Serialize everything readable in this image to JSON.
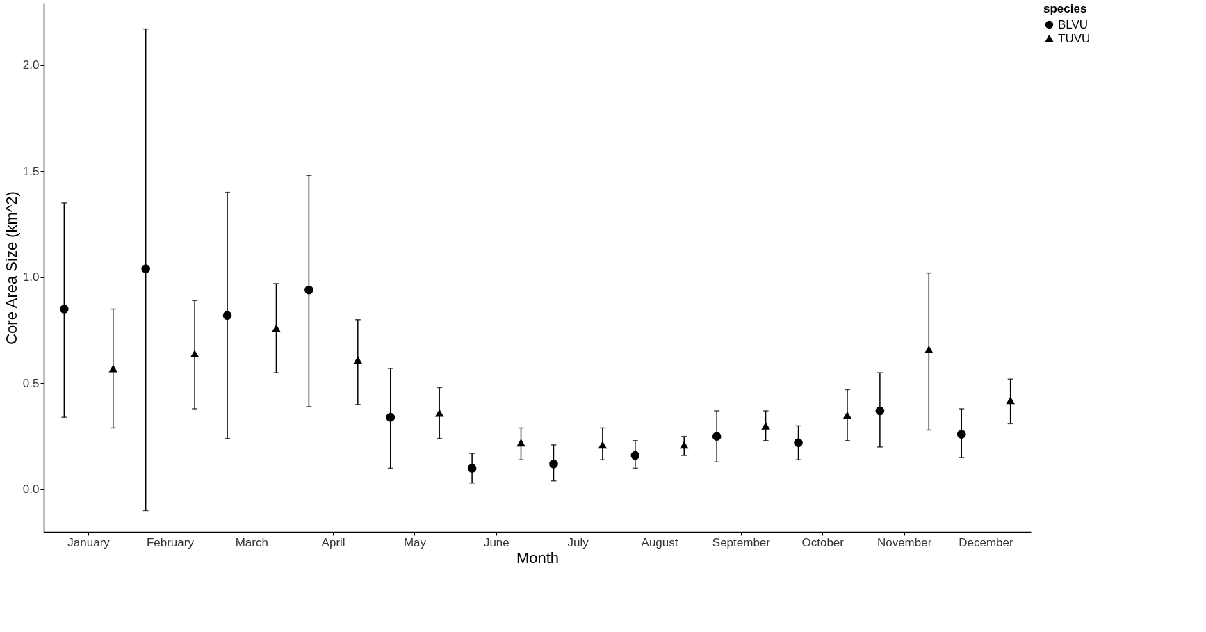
{
  "chart_data": {
    "type": "scatter",
    "xlabel": "Month",
    "ylabel": "Core Area Size (km^2)",
    "legend_title": "species",
    "categories": [
      "January",
      "February",
      "March",
      "April",
      "May",
      "June",
      "July",
      "August",
      "September",
      "October",
      "November",
      "December"
    ],
    "series": [
      {
        "name": "BLVU",
        "color": "#000000",
        "marker": "circle",
        "values": [
          0.85,
          1.04,
          0.82,
          0.94,
          0.34,
          0.1,
          0.12,
          0.16,
          0.25,
          0.22,
          0.37,
          0.26
        ],
        "errors": [
          [
            0.34,
            1.35
          ],
          [
            -0.1,
            2.17
          ],
          [
            0.24,
            1.4
          ],
          [
            0.39,
            1.48
          ],
          [
            0.1,
            0.57
          ],
          [
            0.03,
            0.17
          ],
          [
            0.04,
            0.21
          ],
          [
            0.1,
            0.23
          ],
          [
            0.13,
            0.37
          ],
          [
            0.14,
            0.3
          ],
          [
            0.2,
            0.55
          ],
          [
            0.15,
            0.38
          ]
        ]
      },
      {
        "name": "TUVU",
        "color": "#000000",
        "marker": "triangle",
        "values": [
          0.57,
          0.64,
          0.76,
          0.61,
          0.36,
          0.22,
          0.21,
          0.21,
          0.3,
          0.35,
          0.66,
          0.42
        ],
        "errors": [
          [
            0.29,
            0.85
          ],
          [
            0.38,
            0.89
          ],
          [
            0.55,
            0.97
          ],
          [
            0.4,
            0.8
          ],
          [
            0.24,
            0.48
          ],
          [
            0.14,
            0.29
          ],
          [
            0.14,
            0.29
          ],
          [
            0.16,
            0.25
          ],
          [
            0.23,
            0.37
          ],
          [
            0.23,
            0.47
          ],
          [
            0.28,
            1.02
          ],
          [
            0.31,
            0.52
          ]
        ]
      }
    ],
    "ylim": [
      -0.2,
      2.29
    ],
    "yticks": [
      {
        "value": 0,
        "label": "0.0"
      },
      {
        "value": 0.5,
        "label": "0.5"
      },
      {
        "value": 1,
        "label": "1.0"
      },
      {
        "value": 1.5,
        "label": "1.5"
      },
      {
        "value": 2,
        "label": "2.0"
      }
    ],
    "grid": false,
    "legend": "right"
  }
}
